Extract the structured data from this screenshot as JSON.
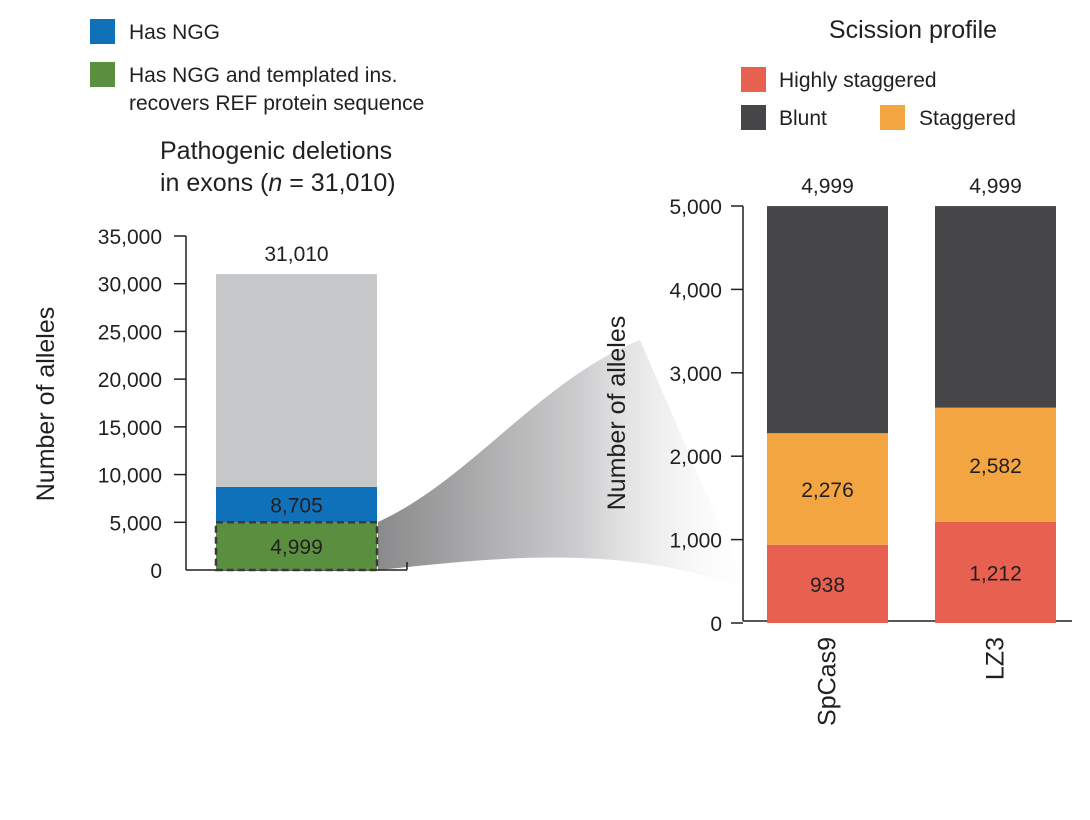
{
  "left_legend": [
    {
      "label": "Has NGG",
      "color": "#0f71b9"
    },
    {
      "label_line1": "Has NGG and templated ins.",
      "label_line2": "recovers REF protein sequence",
      "color": "#5a8f3f"
    }
  ],
  "right_legend": {
    "title": "Scission profile",
    "items": [
      {
        "label": "Highly staggered",
        "color": "#e8604f"
      },
      {
        "label": "Blunt",
        "color": "#464648"
      },
      {
        "label": "Staggered",
        "color": "#f2a541"
      }
    ]
  },
  "chart_data": [
    {
      "type": "bar",
      "stacked": true,
      "title_line1": "Pathogenic deletions",
      "title_line2_prefix": "in exons (",
      "title_line2_italic": "n",
      "title_line2_suffix": " = 31,010)",
      "ylabel": "Number of alleles",
      "ylim": [
        0,
        35000
      ],
      "yticks": [
        0,
        5000,
        10000,
        15000,
        20000,
        25000,
        30000,
        35000
      ],
      "ytick_labels": [
        "0",
        "5,000",
        "10,000",
        "15,000",
        "20,000",
        "25,000",
        "30,000",
        "35,000"
      ],
      "categories": [
        ""
      ],
      "series": [
        {
          "name": "Has NGG and templated ins. recovers REF protein sequence",
          "values": [
            4999
          ],
          "label": "4,999",
          "color": "#5a8f3f"
        },
        {
          "name": "Has NGG",
          "values": [
            3706
          ],
          "label": "8,705",
          "color": "#0f71b9"
        },
        {
          "values": [
            22305
          ],
          "color": "#c6c7c9"
        }
      ],
      "totals": [
        31010
      ],
      "total_labels": [
        "31,010"
      ]
    },
    {
      "type": "bar",
      "stacked": true,
      "ylabel": "Number of alleles",
      "ylim": [
        0,
        5000
      ],
      "yticks": [
        0,
        1000,
        2000,
        3000,
        4000,
        5000
      ],
      "ytick_labels": [
        "0",
        "1,000",
        "2,000",
        "3,000",
        "4,000",
        "5,000"
      ],
      "categories": [
        "SpCas9",
        "LZ3"
      ],
      "series": [
        {
          "name": "Highly staggered",
          "values": [
            938,
            1212
          ],
          "labels": [
            "938",
            "1,212"
          ],
          "color": "#e8604f"
        },
        {
          "name": "Staggered",
          "values": [
            1338,
            1370
          ],
          "labels": [
            "2,276",
            "2,582"
          ],
          "color": "#f2a541"
        },
        {
          "name": "Blunt",
          "values": [
            2723,
            2417
          ],
          "color": "#464648"
        }
      ],
      "totals": [
        4999,
        4999
      ],
      "total_labels": [
        "4,999",
        "4,999"
      ]
    }
  ]
}
